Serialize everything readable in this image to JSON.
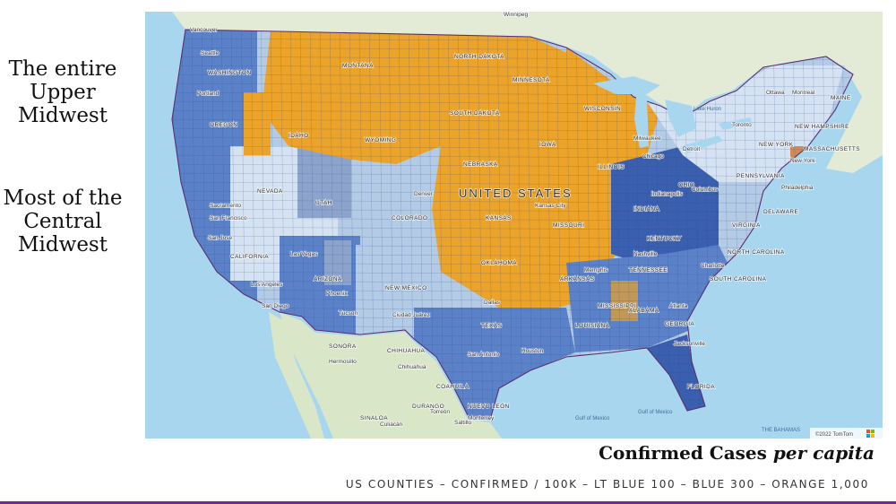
{
  "annotations": [
    {
      "lines": [
        "The entire",
        "Upper",
        "Midwest"
      ]
    },
    {
      "lines": [
        "Most of the",
        "Central",
        "Midwest"
      ]
    }
  ],
  "caption": {
    "main": "Confirmed Cases",
    "emph": "per capita"
  },
  "legend_line": "US COUNTIES – CONFIRMED / 100K – LT BLUE 100 – BLUE 300 – ORANGE 1,000",
  "colors": {
    "water": "#a9d6ef",
    "land": "#dfe9d2",
    "canada": "#e3ebd6",
    "mexico": "#d9e6c8",
    "light_blue": "#b4cbe6",
    "pale_blue": "#d5e2f2",
    "blue": "#5b82c8",
    "dark_blue": "#3a5fae",
    "orange": "#eba32a",
    "grey_blue": "#8ca3cc"
  },
  "map": {
    "country": "UNITED STATES",
    "cities": [
      "Vancouver",
      "Seattle",
      "Portland",
      "San Francisco",
      "Sacramento",
      "San Jose",
      "Las Vegas",
      "Los Angeles",
      "San Diego",
      "Phoenix",
      "Tucson",
      "Ciudad Juárez",
      "Denver",
      "Dallas",
      "Houston",
      "San Antonio",
      "Kansas City",
      "Memphis",
      "Nashville",
      "Atlanta",
      "Chicago",
      "Milwaukee",
      "Detroit",
      "Indianapolis",
      "Columbus",
      "Toronto",
      "Ottawa",
      "Montreal",
      "New York",
      "Philadelphia",
      "Charlotte",
      "Jacksonville",
      "Hermosillo",
      "Chihuahua",
      "Monterrey",
      "Culiacán",
      "Torreón",
      "Saltillo",
      "Winnipeg"
    ],
    "states": [
      "WASHINGTON",
      "OREGON",
      "IDAHO",
      "MONTANA",
      "WYOMING",
      "NEVADA",
      "UTAH",
      "COLORADO",
      "CALIFORNIA",
      "ARIZONA",
      "NEW MEXICO",
      "NORTH DAKOTA",
      "SOUTH DAKOTA",
      "NEBRASKA",
      "KANSAS",
      "OKLAHOMA",
      "TEXAS",
      "MINNESOTA",
      "IOWA",
      "MISSOURI",
      "ARKANSAS",
      "LOUISIANA",
      "WISCONSIN",
      "ILLINOIS",
      "INDIANA",
      "OHIO",
      "KENTUCKY",
      "TENNESSEE",
      "MISSISSIPPI",
      "ALABAMA",
      "GEORGIA",
      "FLORIDA",
      "SOUTH CAROLINA",
      "NORTH CAROLINA",
      "VIRGINIA",
      "PENNSYLVANIA",
      "NEW YORK",
      "MAINE",
      "NEW HAMPSHIRE",
      "MASSACHUSETTS",
      "DELAWARE"
    ],
    "mexico_states": [
      "SONORA",
      "CHIHUAHUA",
      "COAHUILA",
      "NUEVO LEÓN",
      "DURANGO",
      "SINALOA"
    ],
    "water_labels": [
      "Gulf of Mexico",
      "Gulf of Mexico",
      "THE BAHAMAS",
      "Lake Huron"
    ],
    "copyright": "©2022 TomTom"
  }
}
